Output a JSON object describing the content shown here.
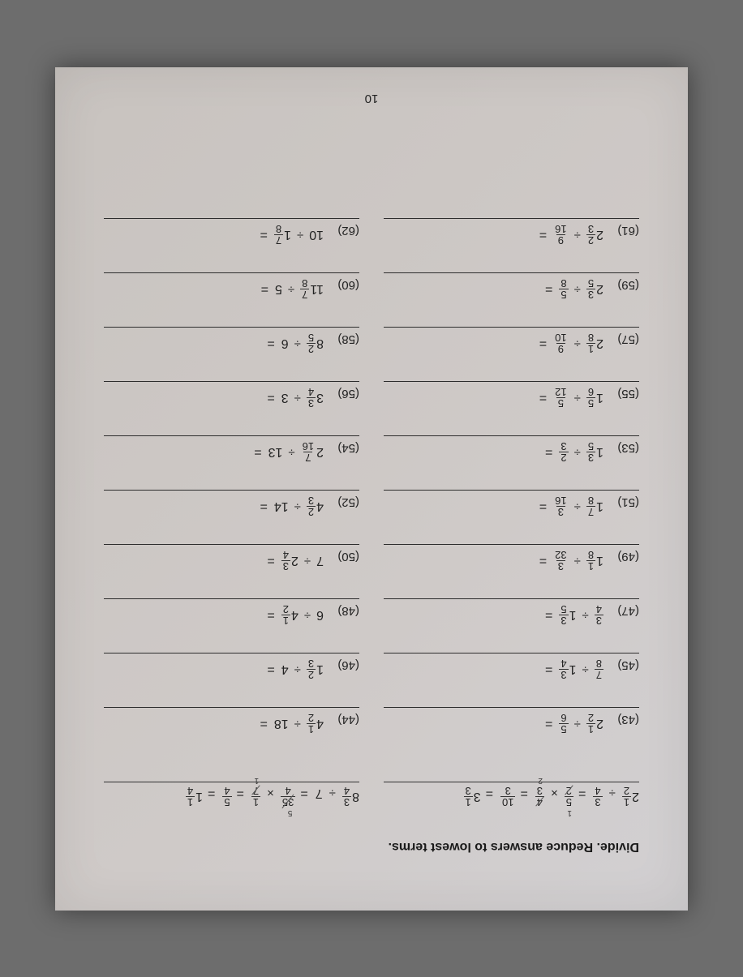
{
  "instruction": "Divide. Reduce answers to lowest terms.",
  "page_number": "10",
  "worked_examples": [
    {
      "prompt_whole": "2",
      "prompt_num": "1",
      "prompt_den": "2",
      "divisor_num": "3",
      "divisor_den": "4",
      "step_a_num": "5",
      "step_a_den": "2",
      "step_b_num": "4",
      "step_b_den": "3",
      "mid_num": "10",
      "mid_den": "3",
      "ans_whole": "3",
      "ans_num": "1",
      "ans_den": "3",
      "ann_top": "1",
      "ann_bot": "2"
    },
    {
      "prompt_whole": "8",
      "prompt_num": "3",
      "prompt_den": "4",
      "divisor": "7",
      "step_a_num": "35",
      "step_a_den": "4",
      "step_b_num": "1",
      "step_b_den": "7",
      "mid_num": "5",
      "mid_den": "4",
      "ans_whole": "1",
      "ans_num": "1",
      "ans_den": "4",
      "ann_top": "5",
      "ann_bot": "1"
    }
  ],
  "problems": [
    {
      "n": "(43)",
      "aW": "2",
      "aN": "1",
      "aD": "2",
      "bW": "",
      "bN": "5",
      "bD": "6"
    },
    {
      "n": "(44)",
      "aW": "4",
      "aN": "1",
      "aD": "2",
      "bW": "18",
      "bN": "",
      "bD": ""
    },
    {
      "n": "(45)",
      "aW": "",
      "aN": "7",
      "aD": "8",
      "bW": "1",
      "bN": "3",
      "bD": "4"
    },
    {
      "n": "(46)",
      "aW": "1",
      "aN": "2",
      "aD": "3",
      "bW": "4",
      "bN": "",
      "bD": ""
    },
    {
      "n": "(47)",
      "aW": "",
      "aN": "3",
      "aD": "4",
      "bW": "1",
      "bN": "3",
      "bD": "5"
    },
    {
      "n": "(48)",
      "aW": "6",
      "aN": "",
      "aD": "",
      "bW": "4",
      "bN": "1",
      "bD": "2"
    },
    {
      "n": "(49)",
      "aW": "1",
      "aN": "1",
      "aD": "8",
      "bW": "",
      "bN": "3",
      "bD": "32"
    },
    {
      "n": "(50)",
      "aW": "7",
      "aN": "",
      "aD": "",
      "bW": "2",
      "bN": "3",
      "bD": "4"
    },
    {
      "n": "(51)",
      "aW": "1",
      "aN": "7",
      "aD": "8",
      "bW": "",
      "bN": "3",
      "bD": "16"
    },
    {
      "n": "(52)",
      "aW": "4",
      "aN": "2",
      "aD": "3",
      "bW": "14",
      "bN": "",
      "bD": ""
    },
    {
      "n": "(53)",
      "aW": "1",
      "aN": "3",
      "aD": "5",
      "bW": "",
      "bN": "2",
      "bD": "3"
    },
    {
      "n": "(54)",
      "aW": "2",
      "aN": "7",
      "aD": "16",
      "bW": "13",
      "bN": "",
      "bD": ""
    },
    {
      "n": "(55)",
      "aW": "1",
      "aN": "5",
      "aD": "6",
      "bW": "",
      "bN": "5",
      "bD": "12"
    },
    {
      "n": "(56)",
      "aW": "3",
      "aN": "3",
      "aD": "4",
      "bW": "3",
      "bN": "",
      "bD": ""
    },
    {
      "n": "(57)",
      "aW": "2",
      "aN": "1",
      "aD": "8",
      "bW": "",
      "bN": "9",
      "bD": "10"
    },
    {
      "n": "(58)",
      "aW": "8",
      "aN": "2",
      "aD": "5",
      "bW": "6",
      "bN": "",
      "bD": ""
    },
    {
      "n": "(59)",
      "aW": "2",
      "aN": "3",
      "aD": "5",
      "bW": "",
      "bN": "5",
      "bD": "8"
    },
    {
      "n": "(60)",
      "aW": "11",
      "aN": "7",
      "aD": "8",
      "bW": "5",
      "bN": "",
      "bD": ""
    },
    {
      "n": "(61)",
      "aW": "2",
      "aN": "2",
      "aD": "3",
      "bW": "",
      "bN": "9",
      "bD": "16"
    },
    {
      "n": "(62)",
      "aW": "10",
      "aN": "",
      "aD": "",
      "bW": "1",
      "bN": "7",
      "bD": "8"
    }
  ],
  "symbols": {
    "divide": "÷",
    "times": "×",
    "equals": "="
  }
}
